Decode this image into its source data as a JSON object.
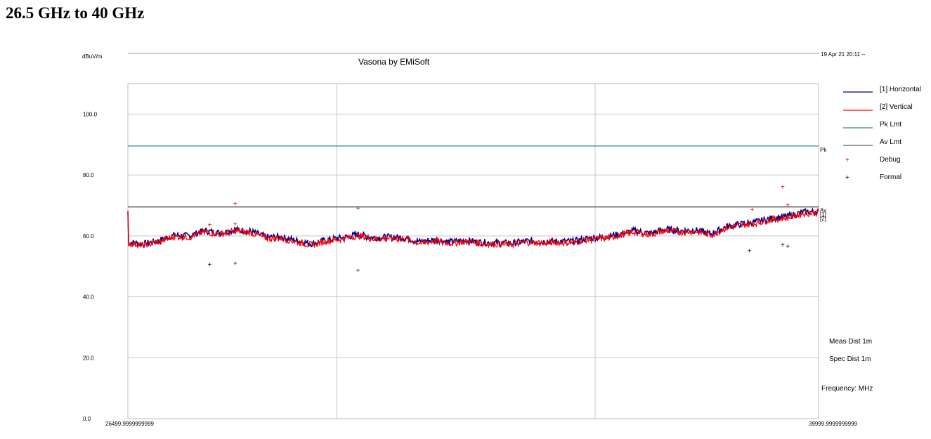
{
  "page": {
    "heading": "26.5 GHz to 40 GHz"
  },
  "chart_data": {
    "type": "line",
    "title": "Vasona by EMiSoft",
    "ylabel": "dBuV/m",
    "date_label": "19 Apr 21 20:11 --",
    "xlim": [
      26499.9999999999,
      39999.9999999999
    ],
    "ylim": [
      0,
      110
    ],
    "y_ticks": [
      "100.0",
      "80.0",
      "60.0",
      "40.0",
      "20.0",
      "0.0"
    ],
    "y_tick_values": [
      100,
      80,
      60,
      40,
      20,
      0
    ],
    "x_tick_labels": [
      "26499.9999999999",
      "39999.9999999999"
    ],
    "grid": true,
    "legend_position": "right",
    "legend": [
      {
        "label": "[1] Horizontal",
        "kind": "line",
        "color": "#00008b"
      },
      {
        "label": "[2] Vertical",
        "kind": "line",
        "color": "#ff0000"
      },
      {
        "label": "Pk Lmt",
        "kind": "line",
        "color": "#2e8b8b"
      },
      {
        "label": "Av Lmt",
        "kind": "line",
        "color": "#333333"
      },
      {
        "label": "Debug",
        "kind": "marker",
        "color": "#cc0000"
      },
      {
        "label": "Formal",
        "kind": "marker",
        "color": "#00003a"
      }
    ],
    "limits": [
      {
        "name": "Pk Lmt",
        "end_label": "Pk",
        "value": 89.5,
        "color": "#2e8b8b"
      },
      {
        "name": "Av Lmt",
        "end_label": "Av",
        "value": 69.5,
        "color": "#333333"
      }
    ],
    "series_end_labels": [
      "[1]",
      "[2]"
    ],
    "series": [
      {
        "name": "[1] Horizontal",
        "color": "#00008b",
        "x": [
          26500,
          26800,
          27100,
          27400,
          27700,
          28000,
          28300,
          28600,
          28900,
          29200,
          29500,
          29800,
          30100,
          30400,
          30700,
          31000,
          31300,
          31600,
          31900,
          32200,
          32500,
          32800,
          33100,
          33400,
          33700,
          34000,
          34300,
          34600,
          34900,
          35200,
          35500,
          35800,
          36100,
          36400,
          36700,
          37000,
          37300,
          37600,
          37900,
          38200,
          38500,
          38800,
          39100,
          39400,
          39700,
          40000
        ],
        "y": [
          58.0,
          57.3,
          58.4,
          60.2,
          60.0,
          61.7,
          61.0,
          62.0,
          61.5,
          59.6,
          59.6,
          58.4,
          57.4,
          58.7,
          59.4,
          60.5,
          59.4,
          59.6,
          59.4,
          58.1,
          58.7,
          58.0,
          58.5,
          57.9,
          57.7,
          57.6,
          58.3,
          58.1,
          58.2,
          58.2,
          59.2,
          59.6,
          60.5,
          61.7,
          60.8,
          62.1,
          61.7,
          61.9,
          60.6,
          63.1,
          63.9,
          64.7,
          65.8,
          66.4,
          67.8,
          68.0
        ]
      },
      {
        "name": "[2] Vertical",
        "color": "#ff0000",
        "x": [
          26500,
          26800,
          27100,
          27400,
          27700,
          28000,
          28300,
          28600,
          28900,
          29200,
          29500,
          29800,
          30100,
          30400,
          30700,
          31000,
          31300,
          31600,
          31900,
          32200,
          32500,
          32800,
          33100,
          33400,
          33700,
          34000,
          34300,
          34600,
          34900,
          35200,
          35500,
          35800,
          36100,
          36400,
          36700,
          37000,
          37300,
          37600,
          37900,
          38200,
          38500,
          38800,
          39100,
          39400,
          39700,
          40000
        ],
        "y": [
          57.6,
          57.0,
          58.0,
          59.8,
          59.6,
          61.3,
          60.6,
          61.6,
          61.1,
          59.2,
          59.2,
          58.0,
          57.0,
          58.3,
          59.0,
          60.1,
          59.0,
          59.2,
          59.0,
          57.7,
          58.3,
          57.6,
          58.1,
          57.5,
          57.3,
          57.2,
          57.9,
          57.7,
          57.8,
          57.8,
          58.8,
          59.2,
          60.1,
          61.3,
          60.4,
          61.7,
          61.3,
          61.5,
          60.2,
          62.7,
          63.5,
          64.3,
          65.4,
          66.0,
          67.4,
          67.6
        ]
      }
    ],
    "markers": {
      "debug": [
        {
          "x": 28100,
          "y": 63.5
        },
        {
          "x": 28600,
          "y": 63.8
        },
        {
          "x": 28600,
          "y": 70.5
        },
        {
          "x": 31000,
          "y": 69.0
        },
        {
          "x": 38700,
          "y": 68.5
        },
        {
          "x": 39300,
          "y": 76.0
        },
        {
          "x": 39400,
          "y": 70.0
        }
      ],
      "formal": [
        {
          "x": 28100,
          "y": 50.5
        },
        {
          "x": 28600,
          "y": 50.8
        },
        {
          "x": 31000,
          "y": 48.5
        },
        {
          "x": 38650,
          "y": 55.0
        },
        {
          "x": 39300,
          "y": 57.0
        },
        {
          "x": 39400,
          "y": 56.5
        }
      ]
    },
    "annotations": [
      "Meas Dist 1m",
      "Spec Dist 1m",
      "Frequency: MHz"
    ]
  }
}
